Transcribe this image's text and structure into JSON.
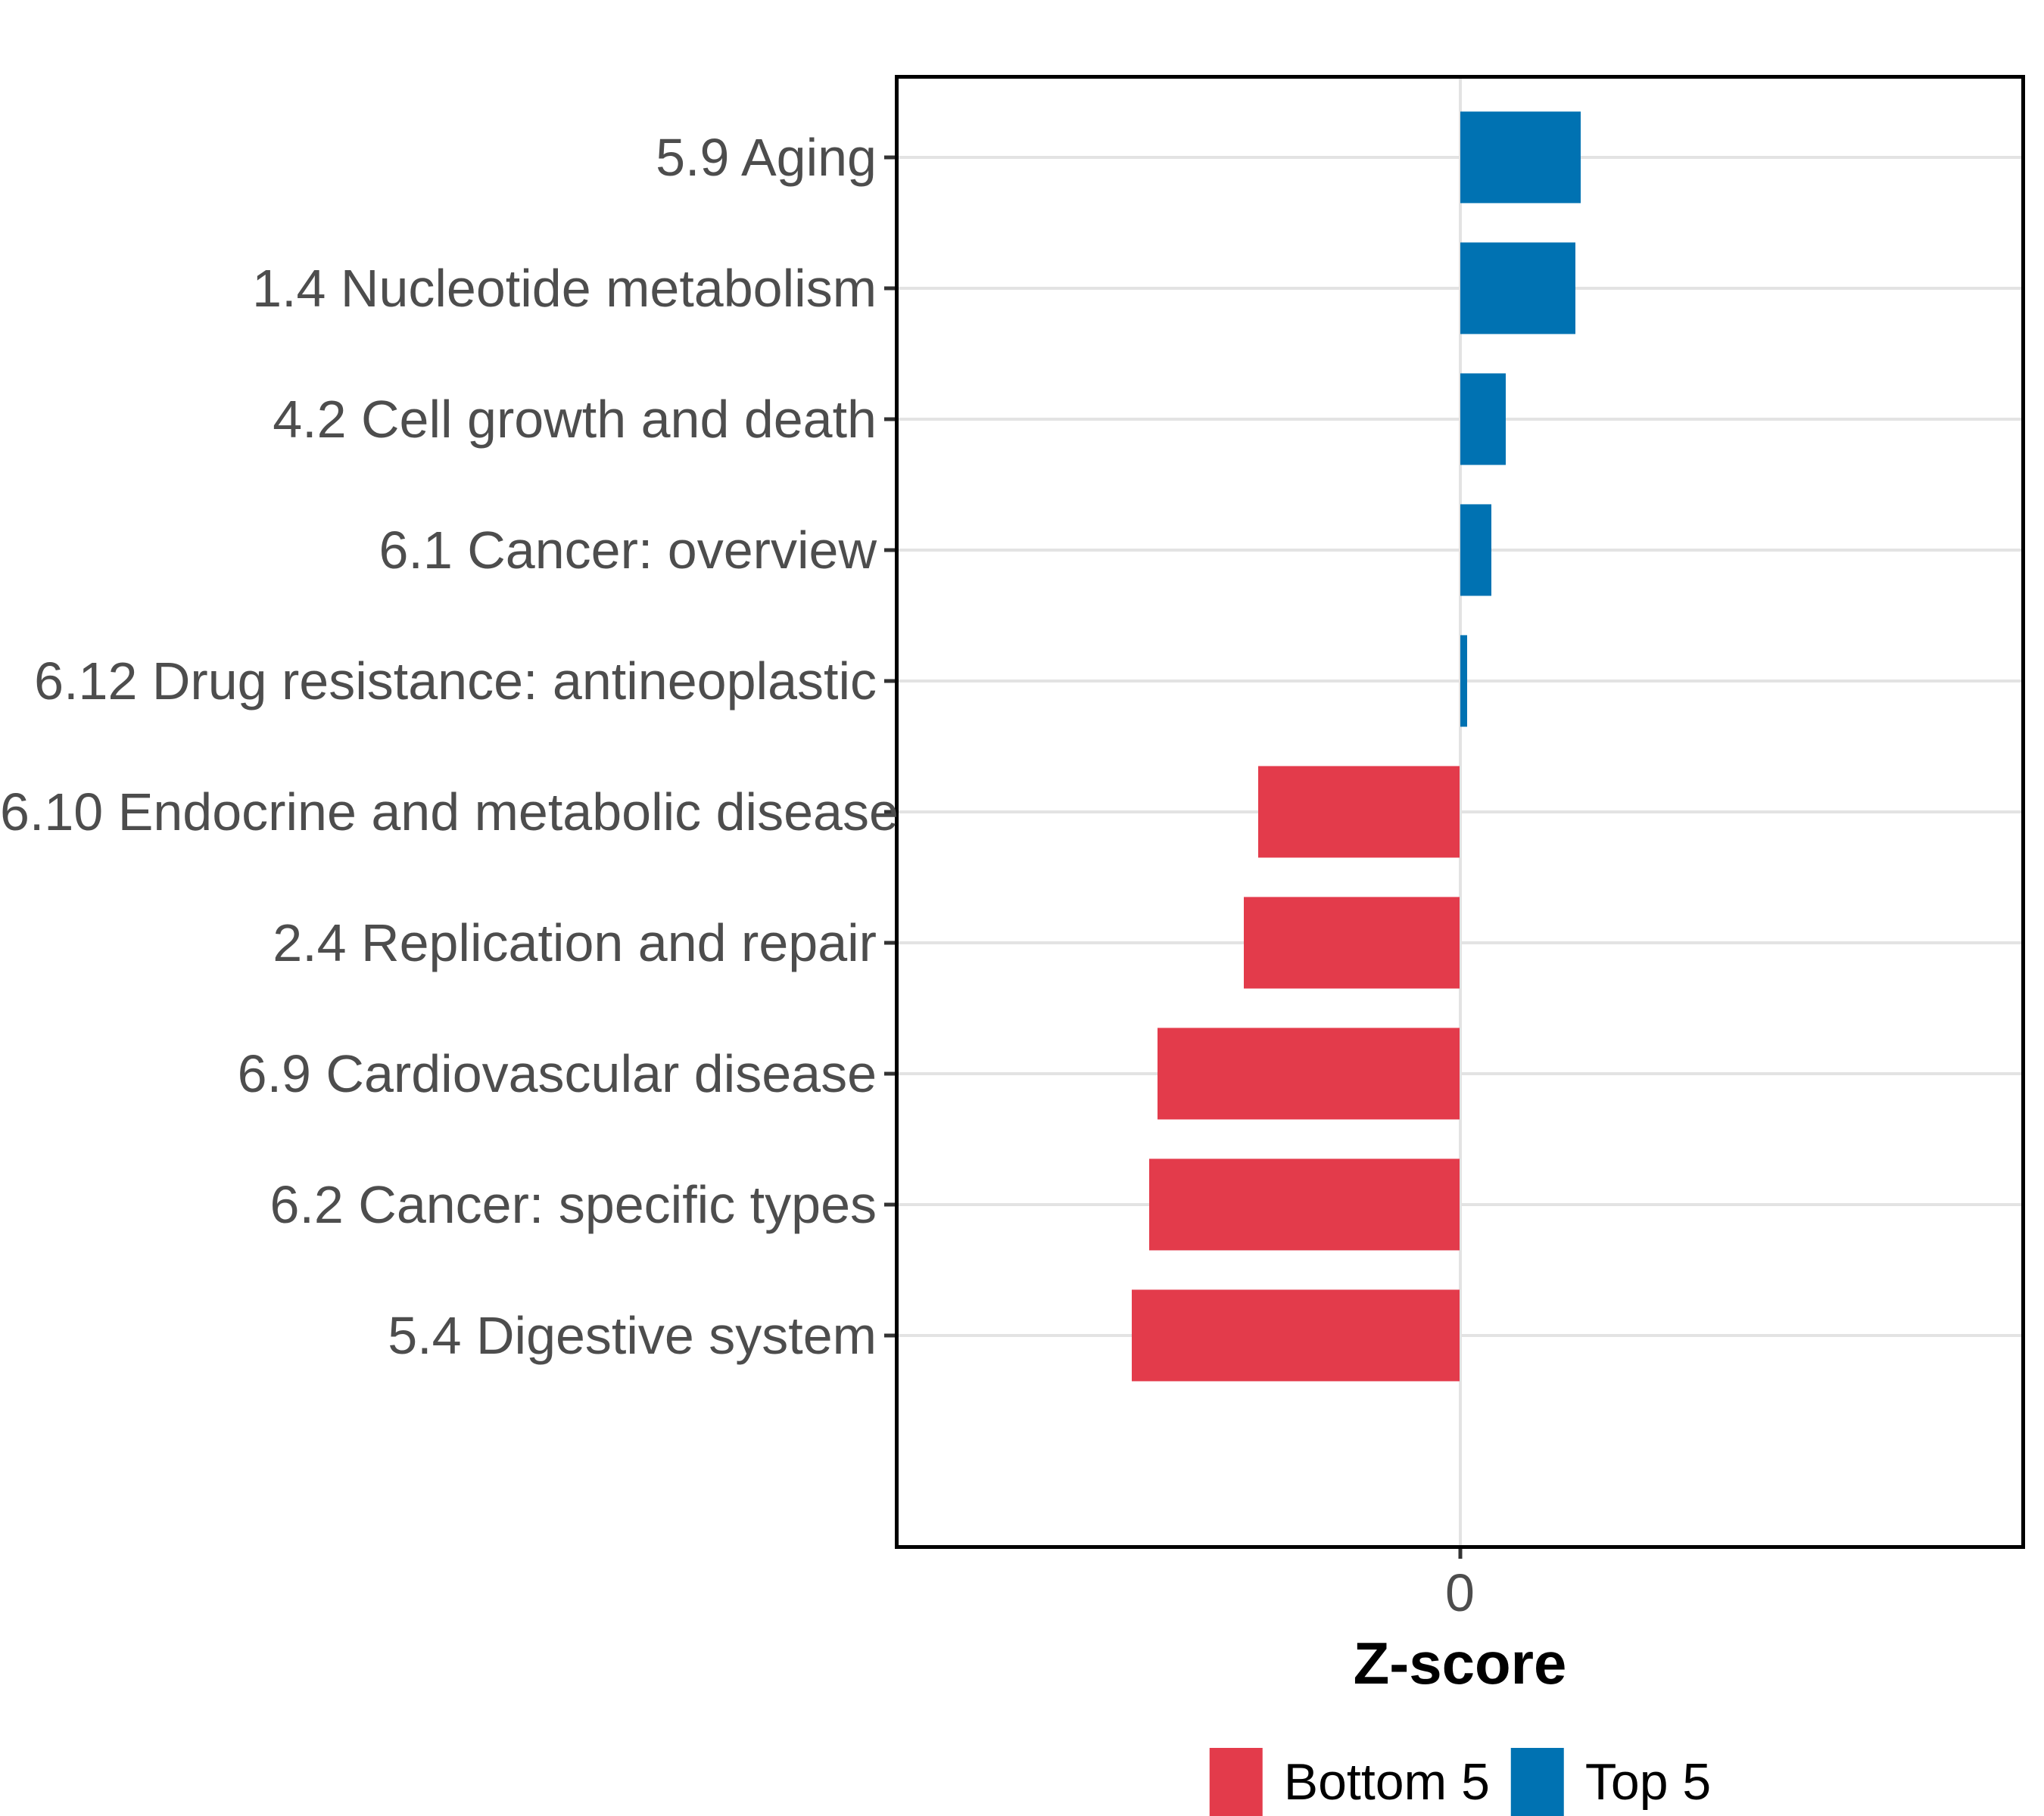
{
  "chart_data": {
    "type": "bar",
    "orientation": "horizontal",
    "title": "",
    "xlabel": "Z-score",
    "ylabel": "",
    "x_tick_labels": [
      "0"
    ],
    "xlim": [
      -1.95,
      1.95
    ],
    "grid": "major-horizontal-per-category-and-zero-vertical",
    "legend_position": "bottom-center",
    "categories": [
      "5.9 Aging",
      "1.4 Nucleotide metabolism",
      "4.2 Cell growth and death",
      "6.1 Cancer: overview",
      "6.12 Drug resistance: antineoplastic",
      "6.10 Endocrine and metabolic disease",
      "2.4 Replication and repair",
      "6.9 Cardiovascular disease",
      "6.2 Cancer: specific types",
      "5.4 Digestive system"
    ],
    "values": [
      0.42,
      0.4,
      0.16,
      0.11,
      0.025,
      -0.7,
      -0.75,
      -1.05,
      -1.08,
      -1.14
    ],
    "groups": [
      "Top 5",
      "Top 5",
      "Top 5",
      "Top 5",
      "Top 5",
      "Bottom 5",
      "Bottom 5",
      "Bottom 5",
      "Bottom 5",
      "Bottom 5"
    ],
    "legend": [
      {
        "label": "Bottom 5",
        "color": "#E33B4B"
      },
      {
        "label": "Top 5",
        "color": "#0072B2"
      }
    ],
    "colors": {
      "top5": "#0072B2",
      "bottom5": "#E33B4B",
      "gridline": "#E3E3E3",
      "axis_text": "#4D4D4D",
      "tick_mark": "#333333",
      "panel_border": "#000000",
      "background": "#FFFFFF"
    }
  }
}
